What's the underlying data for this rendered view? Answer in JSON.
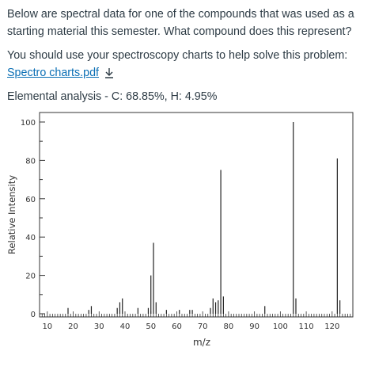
{
  "question": {
    "line1": "Below are spectral data for one of the compounds that was used as a starting material this semester. What compound does this represent?",
    "line2_prefix": "You should use your spectroscopy charts to help solve this problem: ",
    "link_text": "Spectro charts.pdf",
    "download_icon": "download-icon",
    "elemental": "Elemental analysis - C: 68.85%, H: 4.95%"
  },
  "colors": {
    "link": "#0b6fb5",
    "text": "#2d3b45"
  },
  "chart_data": {
    "type": "bar",
    "xlabel": "m/z",
    "ylabel": "Relative Intensity",
    "xlim": [
      7,
      128
    ],
    "ylim": [
      0,
      100
    ],
    "xticks": [
      "10",
      "20",
      "30",
      "40",
      "50",
      "60",
      "70",
      "80",
      "90",
      "100",
      "110",
      "120"
    ],
    "yticks": [
      "0",
      "20",
      "40",
      "60",
      "80",
      "100"
    ],
    "peaks": [
      {
        "mz": 18,
        "intensity": 3
      },
      {
        "mz": 26,
        "intensity": 2
      },
      {
        "mz": 27,
        "intensity": 4
      },
      {
        "mz": 37,
        "intensity": 3
      },
      {
        "mz": 38,
        "intensity": 6
      },
      {
        "mz": 39,
        "intensity": 8
      },
      {
        "mz": 45,
        "intensity": 3
      },
      {
        "mz": 49,
        "intensity": 3
      },
      {
        "mz": 50,
        "intensity": 20
      },
      {
        "mz": 51,
        "intensity": 37
      },
      {
        "mz": 52,
        "intensity": 6
      },
      {
        "mz": 56,
        "intensity": 2
      },
      {
        "mz": 61,
        "intensity": 2
      },
      {
        "mz": 65,
        "intensity": 2
      },
      {
        "mz": 66,
        "intensity": 2
      },
      {
        "mz": 73,
        "intensity": 3
      },
      {
        "mz": 74,
        "intensity": 8
      },
      {
        "mz": 75,
        "intensity": 6
      },
      {
        "mz": 76,
        "intensity": 7
      },
      {
        "mz": 77,
        "intensity": 75
      },
      {
        "mz": 78,
        "intensity": 9
      },
      {
        "mz": 94,
        "intensity": 4
      },
      {
        "mz": 105,
        "intensity": 100
      },
      {
        "mz": 106,
        "intensity": 8
      },
      {
        "mz": 122,
        "intensity": 81
      },
      {
        "mz": 123,
        "intensity": 7
      }
    ]
  }
}
